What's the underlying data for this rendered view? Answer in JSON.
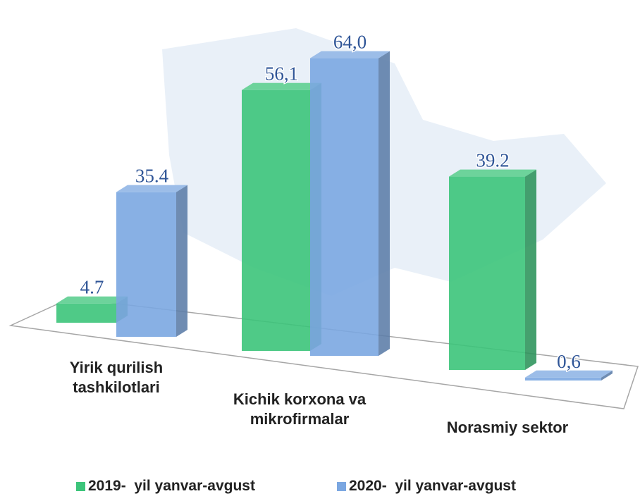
{
  "chart_data": {
    "type": "bar3d",
    "categories": [
      "Yirik qurilish tashkilotlari",
      "Kichik korxona va mikrofirmalar",
      "Norasmiy sektor"
    ],
    "series": [
      {
        "name": "2019-  yil yanvar-avgust",
        "color": "#3cc47a",
        "values": [
          4.7,
          56.1,
          39.2
        ],
        "value_labels": [
          "4.7",
          "56,1",
          "39.2"
        ]
      },
      {
        "name": "2020-  yil yanvar-avgust",
        "color": "#7ba7e1",
        "values": [
          35.4,
          64.0,
          0.6
        ],
        "value_labels": [
          "35.4",
          "64,0",
          "0,6"
        ]
      }
    ]
  }
}
